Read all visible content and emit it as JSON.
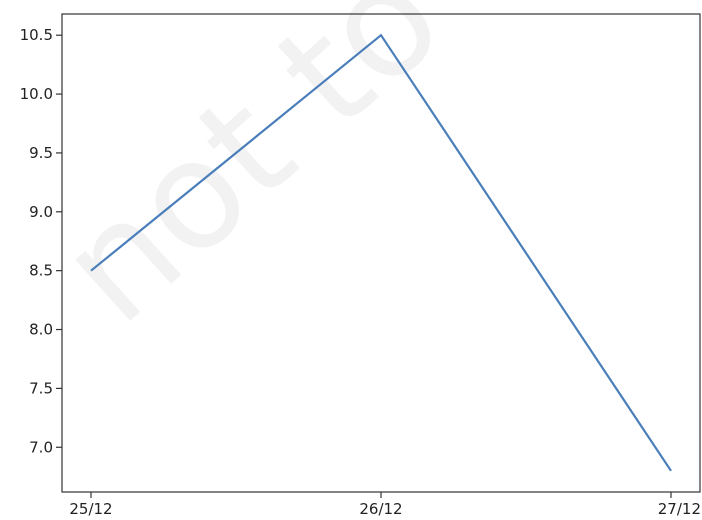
{
  "chart_data": {
    "type": "line",
    "categories": [
      "25/12",
      "26/12",
      "27/12"
    ],
    "series": [
      {
        "values": [
          8.5,
          10.5,
          6.8
        ],
        "color": "#4a7ebb"
      }
    ],
    "yticks": [
      7.0,
      7.5,
      8.0,
      8.5,
      9.0,
      9.5,
      10.0,
      10.5
    ],
    "ytick_labels": [
      "7.0",
      "7.5",
      "8.0",
      "8.5",
      "9.0",
      "9.5",
      "10.0",
      "10.5"
    ],
    "ylim": [
      6.62,
      10.68
    ],
    "grid": false,
    "title": "",
    "xlabel": "",
    "ylabel": ""
  },
  "watermark": {
    "text": "not to be"
  }
}
